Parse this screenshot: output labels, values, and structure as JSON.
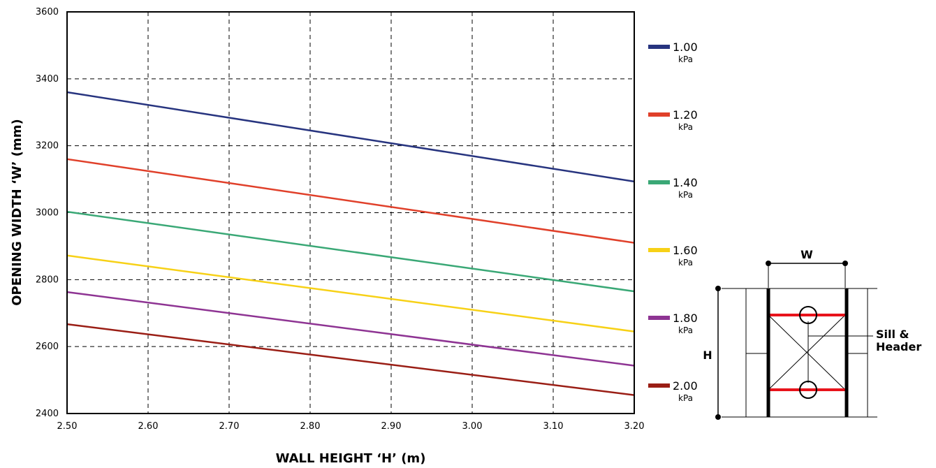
{
  "chart_data": {
    "type": "line",
    "xlabel": "WALL HEIGHT ‘H’ (m)",
    "ylabel": "OPENING WIDTH ‘W’ (mm)",
    "xlim": [
      2.5,
      3.2
    ],
    "ylim": [
      2400,
      3600
    ],
    "x_ticks": [
      "2.50",
      "2.60",
      "2.70",
      "2.80",
      "2.90",
      "3.00",
      "3.10",
      "3.20"
    ],
    "y_ticks": [
      "2400",
      "2600",
      "2800",
      "3000",
      "3200",
      "3400",
      "3600"
    ],
    "grid": true,
    "legend_position": "right",
    "x": [
      2.5,
      3.2
    ],
    "series": [
      {
        "name": "1.00",
        "unit": "kPa",
        "color": "#27347f",
        "values": [
          3360,
          3093
        ]
      },
      {
        "name": "1.20",
        "unit": "kPa",
        "color": "#e0402a",
        "values": [
          3160,
          2910
        ]
      },
      {
        "name": "1.40",
        "unit": "kPa",
        "color": "#3aa876",
        "values": [
          3003,
          2765
        ]
      },
      {
        "name": "1.60",
        "unit": "kPa",
        "color": "#f7d117",
        "values": [
          2872,
          2645
        ]
      },
      {
        "name": "1.80",
        "unit": "kPa",
        "color": "#8e3493",
        "values": [
          2763,
          2543
        ]
      },
      {
        "name": "2.00",
        "unit": "kPa",
        "color": "#9a1e15",
        "values": [
          2667,
          2455
        ]
      }
    ]
  },
  "diagram": {
    "width_label": "W",
    "height_label": "H",
    "callout_label_line1": "Sill &",
    "callout_label_line2": "Header"
  }
}
